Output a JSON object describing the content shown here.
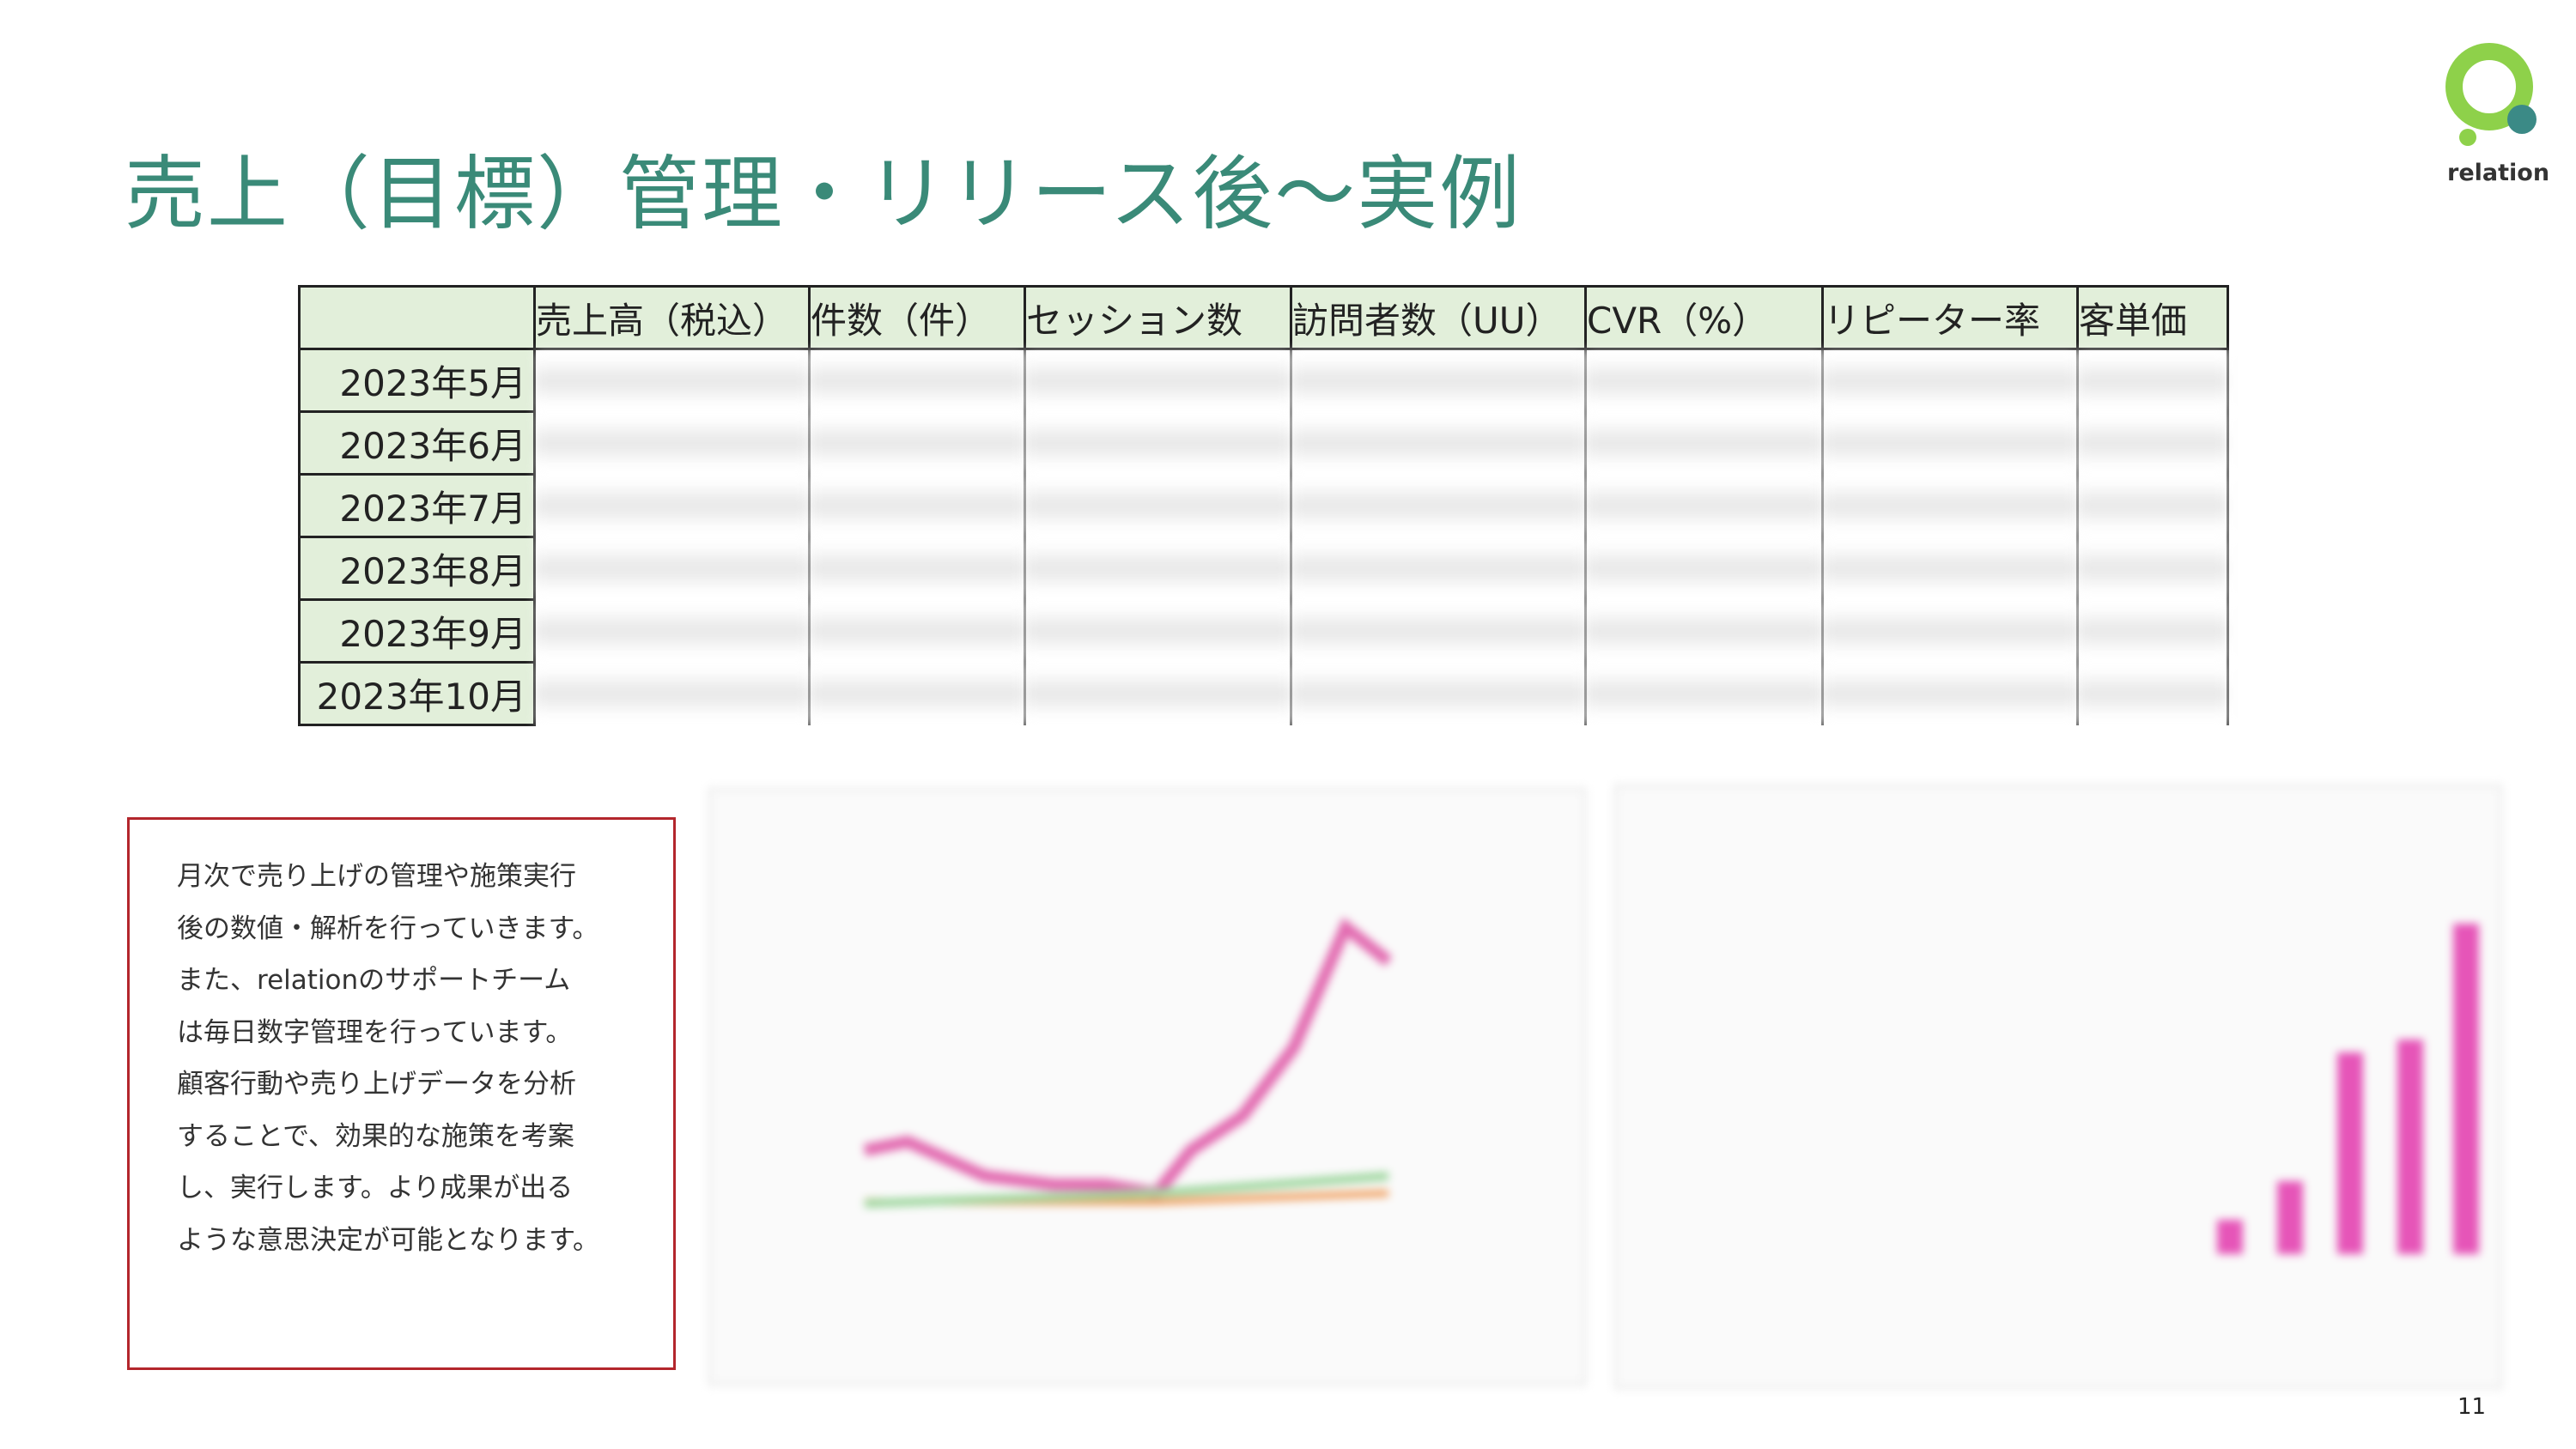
{
  "header": {
    "title": "売上（目標）管理・リリース後〜実例",
    "logo": "relation"
  },
  "table": {
    "columns": [
      "売上高（税込）",
      "件数（件）",
      "セッション数",
      "訪問者数（UU）",
      "CVR（%）",
      "リピーター率",
      "客単価"
    ],
    "rows": [
      "2023年5月",
      "2023年6月",
      "2023年7月",
      "2023年8月",
      "2023年9月",
      "2023年10月"
    ]
  },
  "note": {
    "lines": [
      "月次で売り上げの管理や施策実行",
      "後の数値・解析を行っていきます。",
      "また、relationのサポートチーム",
      "は毎日数字管理を行っています。",
      "顧客行動や売り上げデータを分析",
      "することで、効果的な施策を考案",
      "し、実行します。より成果が出る",
      "ような意思決定が可能となります。"
    ]
  },
  "footer": {
    "page_number": "11"
  }
}
